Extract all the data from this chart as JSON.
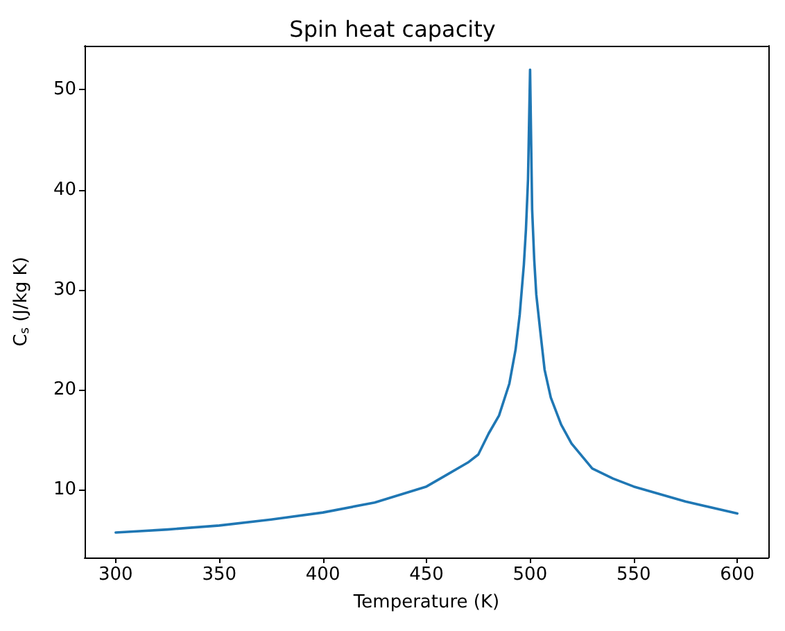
{
  "chart_data": {
    "type": "line",
    "title": "Spin heat capacity",
    "xlabel": "Temperature (K)",
    "ylabel": "C$_{s}$ (J/kg K)",
    "x": [
      300,
      325,
      350,
      375,
      400,
      425,
      450,
      460,
      470,
      475,
      480,
      485,
      490,
      493,
      495,
      497,
      498,
      499,
      500,
      501,
      502,
      503,
      505,
      507,
      510,
      515,
      520,
      530,
      540,
      550,
      575,
      600
    ],
    "series": [
      {
        "color": "#1f77b4",
        "values": [
          5.7,
          6,
          6.4,
          7,
          7.7,
          8.7,
          10.3,
          11.5,
          12.7,
          13.5,
          15.6,
          17.4,
          20.6,
          24,
          27.5,
          32.5,
          36,
          41,
          52,
          38,
          33,
          29.5,
          25.7,
          22,
          19.2,
          16.5,
          14.6,
          12.1,
          11.1,
          10.3,
          8.8,
          7.6
        ]
      }
    ],
    "xlim": [
      285,
      615
    ],
    "xticks": [
      300,
      350,
      400,
      450,
      500,
      550,
      600
    ],
    "ylim": [
      3.2,
      54.4
    ],
    "yticks": [
      10,
      20,
      30,
      40,
      50
    ],
    "grid": false,
    "marker": "none",
    "line_style": "solid"
  }
}
